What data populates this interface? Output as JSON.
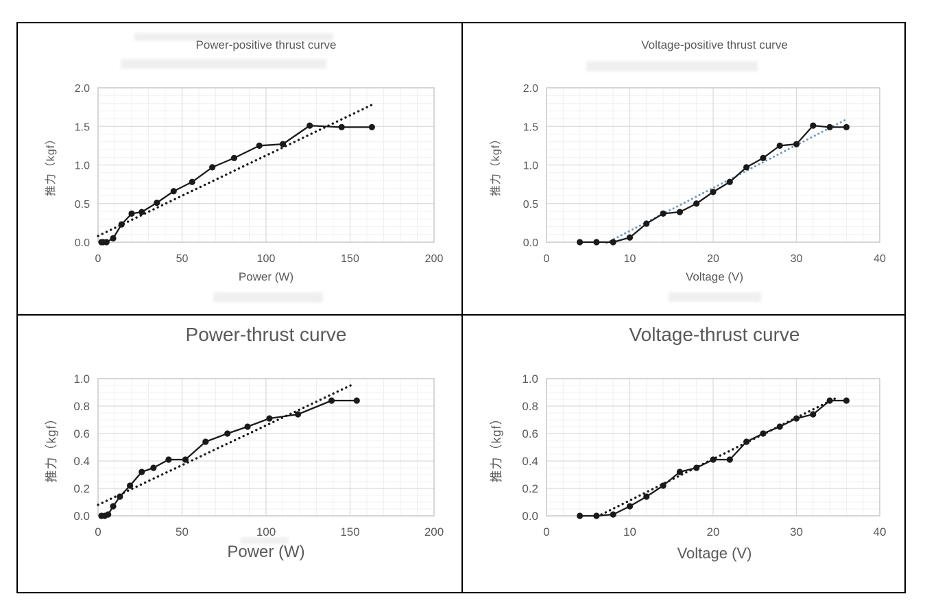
{
  "figure": {
    "description": "Four thrust measurement charts in a 2x2 bordered grid"
  },
  "styles": {
    "background": "#ffffff",
    "frame_color": "#000000",
    "title_color": "#595959",
    "tick_label_color": "#595959",
    "axis_label_color": "#595959",
    "grid_major_color": "#d9d9d9",
    "grid_minor_color": "#f0f0f0",
    "plot_border_color": "#c9c9c9",
    "series_color": "#1a1a1a",
    "trend_black": "#1a1a1a",
    "trend_blue": "#6e97bd"
  },
  "chart_data": [
    {
      "type": "line",
      "title": "Power-positive thrust curve",
      "xlabel": "Power (W)",
      "ylabel": "推力（kgf）",
      "x": [
        2,
        3,
        5,
        9,
        14,
        20,
        26,
        35,
        45,
        56,
        68,
        81,
        96,
        110,
        126,
        145,
        163
      ],
      "y": [
        0,
        0,
        0,
        0.05,
        0.23,
        0.37,
        0.39,
        0.51,
        0.66,
        0.78,
        0.97,
        1.09,
        1.25,
        1.27,
        1.51,
        1.49,
        1.49
      ],
      "xlim": [
        0,
        200
      ],
      "x_major": 50,
      "x_minor": 10,
      "x_decimals": 0,
      "ylim": [
        0,
        2
      ],
      "y_major": 0.5,
      "y_minor": 0.1,
      "y_decimals": 1,
      "grid": true,
      "legend": false,
      "series_color": "#1a1a1a",
      "trendline": {
        "style": "dotted",
        "color": "#1a1a1a",
        "x1": 0,
        "y1": 0.08,
        "x2": 165,
        "y2": 1.8
      }
    },
    {
      "type": "line",
      "title": "Voltage-positive thrust curve",
      "xlabel": "Voltage (V)",
      "ylabel": "推力（kgf）",
      "x": [
        4,
        6,
        8,
        10,
        12,
        14,
        16,
        18,
        20,
        22,
        24,
        26,
        28,
        30,
        32,
        34,
        36
      ],
      "y": [
        0,
        0,
        0,
        0.06,
        0.24,
        0.37,
        0.39,
        0.5,
        0.65,
        0.78,
        0.97,
        1.09,
        1.25,
        1.27,
        1.51,
        1.49,
        1.49
      ],
      "xlim": [
        0,
        40
      ],
      "x_major": 10,
      "x_minor": 2,
      "x_decimals": 0,
      "ylim": [
        0,
        2
      ],
      "y_major": 0.5,
      "y_minor": 0.1,
      "y_decimals": 1,
      "grid": true,
      "legend": false,
      "series_color": "#1a1a1a",
      "trendline": {
        "style": "dotted",
        "color": "#6e97bd",
        "x1": 7.2,
        "y1": -0.01,
        "x2": 35.8,
        "y2": 1.58
      }
    },
    {
      "type": "line",
      "title": "Power-thrust curve",
      "xlabel": "Power (W)",
      "ylabel": "推力（kgf）",
      "x": [
        2,
        4,
        6,
        9,
        13,
        19,
        26,
        33,
        42,
        52,
        64,
        77,
        89,
        102,
        119,
        139,
        154
      ],
      "y": [
        0,
        0,
        0.01,
        0.07,
        0.14,
        0.22,
        0.32,
        0.35,
        0.41,
        0.41,
        0.54,
        0.6,
        0.65,
        0.71,
        0.74,
        0.84,
        0.84
      ],
      "xlim": [
        0,
        200
      ],
      "x_major": 50,
      "x_minor": 10,
      "x_decimals": 0,
      "ylim": [
        0,
        1
      ],
      "y_major": 0.2,
      "y_minor": 0.05,
      "y_decimals": 1,
      "grid": true,
      "legend": false,
      "series_color": "#1a1a1a",
      "trendline": {
        "style": "dotted",
        "color": "#1a1a1a",
        "x1": 0,
        "y1": 0.08,
        "x2": 152,
        "y2": 0.96
      }
    },
    {
      "type": "line",
      "title": "Voltage-thrust curve",
      "xlabel": "Voltage (V)",
      "ylabel": "推力（kgf）",
      "x": [
        4,
        6,
        8,
        10,
        12,
        14,
        16,
        18,
        20,
        22,
        24,
        26,
        28,
        30,
        32,
        34,
        36
      ],
      "y": [
        0,
        0,
        0.01,
        0.07,
        0.14,
        0.22,
        0.32,
        0.35,
        0.41,
        0.41,
        0.54,
        0.6,
        0.65,
        0.71,
        0.74,
        0.84,
        0.84
      ],
      "xlim": [
        0,
        40
      ],
      "x_major": 10,
      "x_minor": 2,
      "x_decimals": 0,
      "ylim": [
        0,
        1
      ],
      "y_major": 0.2,
      "y_minor": 0.05,
      "y_decimals": 1,
      "grid": true,
      "legend": false,
      "series_color": "#1a1a1a",
      "trendline": {
        "style": "dotted",
        "color": "#1a1a1a",
        "x1": 6.6,
        "y1": 0.01,
        "x2": 34.8,
        "y2": 0.86
      }
    }
  ]
}
